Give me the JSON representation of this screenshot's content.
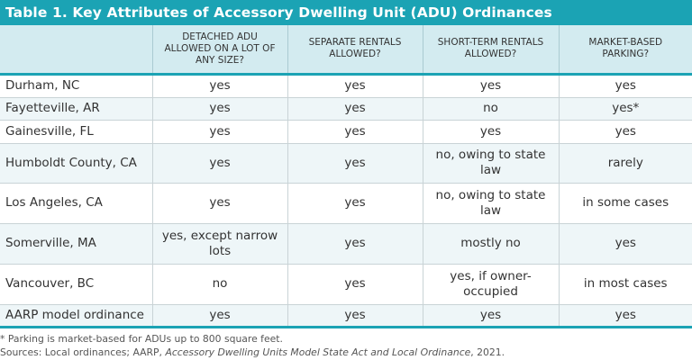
{
  "title": "Table 1. Key Attributes of Accessory Dwelling Unit (ADU) Ordinances",
  "columns": [
    "",
    "DETACHED ADU ALLOWED ON A LOT OF ANY SIZE?",
    "SEPARATE RENTALS ALLOWED?",
    "SHORT-TERM RENTALS ALLOWED?",
    "MARKET-BASED PARKING?"
  ],
  "rows": [
    [
      "Durham, NC",
      "yes",
      "yes",
      "yes",
      "yes"
    ],
    [
      "Fayetteville, AR",
      "yes",
      "yes",
      "no",
      "yes*"
    ],
    [
      "Gainesville, FL",
      "yes",
      "yes",
      "yes",
      "yes"
    ],
    [
      "Humboldt County, CA",
      "yes",
      "yes",
      "no, owing to state law",
      "rarely"
    ],
    [
      "Los Angeles, CA",
      "yes",
      "yes",
      "no, owing to state law",
      "in some cases"
    ],
    [
      "Somerville, MA",
      "yes, except narrow lots",
      "yes",
      "mostly no",
      "yes"
    ],
    [
      "Vancouver, BC",
      "no",
      "yes",
      "yes, if owner-occupied",
      "in most cases"
    ],
    [
      "AARP model ordinance",
      "yes",
      "yes",
      "yes",
      "yes"
    ]
  ],
  "footnote": "* Parking is market-based for ADUs up to 800 square feet.",
  "sources": {
    "prefix": "Sources: Local ordinances; AARP, ",
    "title": "Accessory Dwelling Units Model State Act and Local Ordinance",
    "suffix": ", 2021."
  },
  "colors": {
    "accent": "#1ba3b4",
    "header_bg": "#d3ebf0",
    "alt_row": "#eef6f8"
  }
}
